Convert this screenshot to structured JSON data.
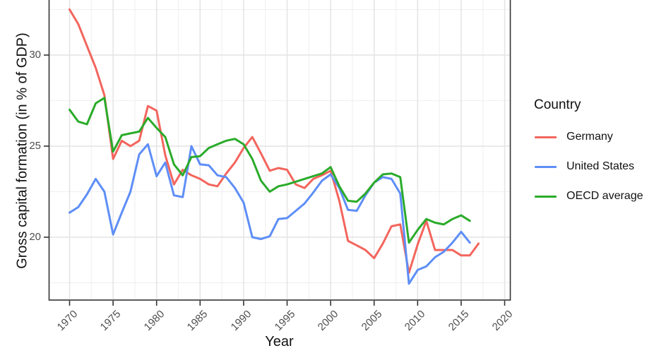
{
  "axes": {
    "x_label": "Year",
    "y_label": "Gross capital formation (in % of GDP)",
    "x_tick_labels": [
      "1970",
      "1975",
      "1980",
      "1985",
      "1990",
      "1995",
      "2000",
      "2005",
      "2010",
      "2015",
      "2020"
    ],
    "y_tick_labels": [
      "30",
      "25",
      "20"
    ]
  },
  "legend": {
    "title": "Country"
  },
  "colors": {
    "germany": "#F3655D",
    "united_states": "#5E8EF7",
    "oecd_average": "#2AAB2A",
    "grid_major": "#E4E4E4",
    "grid_minor": "#F1F1F1",
    "panel_border": "#333333",
    "tick_text": "#4d4d4d"
  },
  "chart_data": {
    "type": "line",
    "title": "",
    "xlabel": "Year",
    "ylabel": "Gross capital formation (in % of GDP)",
    "legend_title": "Country",
    "legend_position": "right",
    "grid": "major and minor, light gray on white, black panel border",
    "x_major_ticks": [
      1970,
      1975,
      1980,
      1985,
      1990,
      1995,
      2000,
      2005,
      2010,
      2015,
      2020
    ],
    "y_major_ticks": [
      20,
      25,
      30
    ],
    "y_minor_ticks": [
      17.5,
      22.5,
      27.5,
      32.5
    ],
    "xlim": [
      1967.6,
      2020.6
    ],
    "ylim": [
      16.5,
      33.0
    ],
    "series": [
      {
        "name": "Germany",
        "color": "#F3655D",
        "start_year": 1970,
        "end_year": 2017,
        "values": [
          32.5,
          31.7,
          30.5,
          29.3,
          27.8,
          24.3,
          25.3,
          25.0,
          25.3,
          27.2,
          26.95,
          24.5,
          22.9,
          23.7,
          23.4,
          23.2,
          22.9,
          22.8,
          23.5,
          24.1,
          24.9,
          25.5,
          24.6,
          23.65,
          23.8,
          23.7,
          22.9,
          22.7,
          23.2,
          23.4,
          23.65,
          22.0,
          19.8,
          19.55,
          19.3,
          18.85,
          19.65,
          20.6,
          20.7,
          18.05,
          19.6,
          20.9,
          19.3,
          19.3,
          19.3,
          19.0,
          19.0,
          19.65
        ]
      },
      {
        "name": "United States",
        "color": "#5E8EF7",
        "start_year": 1970,
        "end_year": 2016,
        "values": [
          21.35,
          21.65,
          22.35,
          23.2,
          22.5,
          20.15,
          21.35,
          22.5,
          24.55,
          25.1,
          23.35,
          24.1,
          22.3,
          22.2,
          25.0,
          24.0,
          23.95,
          23.4,
          23.3,
          22.7,
          21.9,
          20.0,
          19.9,
          20.05,
          21.0,
          21.05,
          21.45,
          21.85,
          22.45,
          23.1,
          23.45,
          22.7,
          21.5,
          21.45,
          22.3,
          23.0,
          23.3,
          23.2,
          22.4,
          17.45,
          18.2,
          18.4,
          18.9,
          19.2,
          19.7,
          20.3,
          19.7
        ]
      },
      {
        "name": "OECD average",
        "color": "#2AAB2A",
        "start_year": 1970,
        "end_year": 2016,
        "values": [
          27.0,
          26.35,
          26.2,
          27.35,
          27.65,
          24.7,
          25.6,
          25.7,
          25.8,
          26.55,
          26.0,
          25.5,
          24.0,
          23.4,
          24.4,
          24.45,
          24.9,
          25.1,
          25.3,
          25.4,
          25.1,
          24.3,
          23.1,
          22.5,
          22.8,
          22.9,
          23.05,
          23.2,
          23.35,
          23.5,
          23.85,
          22.8,
          22.0,
          21.95,
          22.4,
          23.0,
          23.45,
          23.5,
          23.3,
          19.7,
          20.4,
          21.0,
          20.8,
          20.7,
          21.0,
          21.2,
          20.9
        ]
      }
    ]
  }
}
